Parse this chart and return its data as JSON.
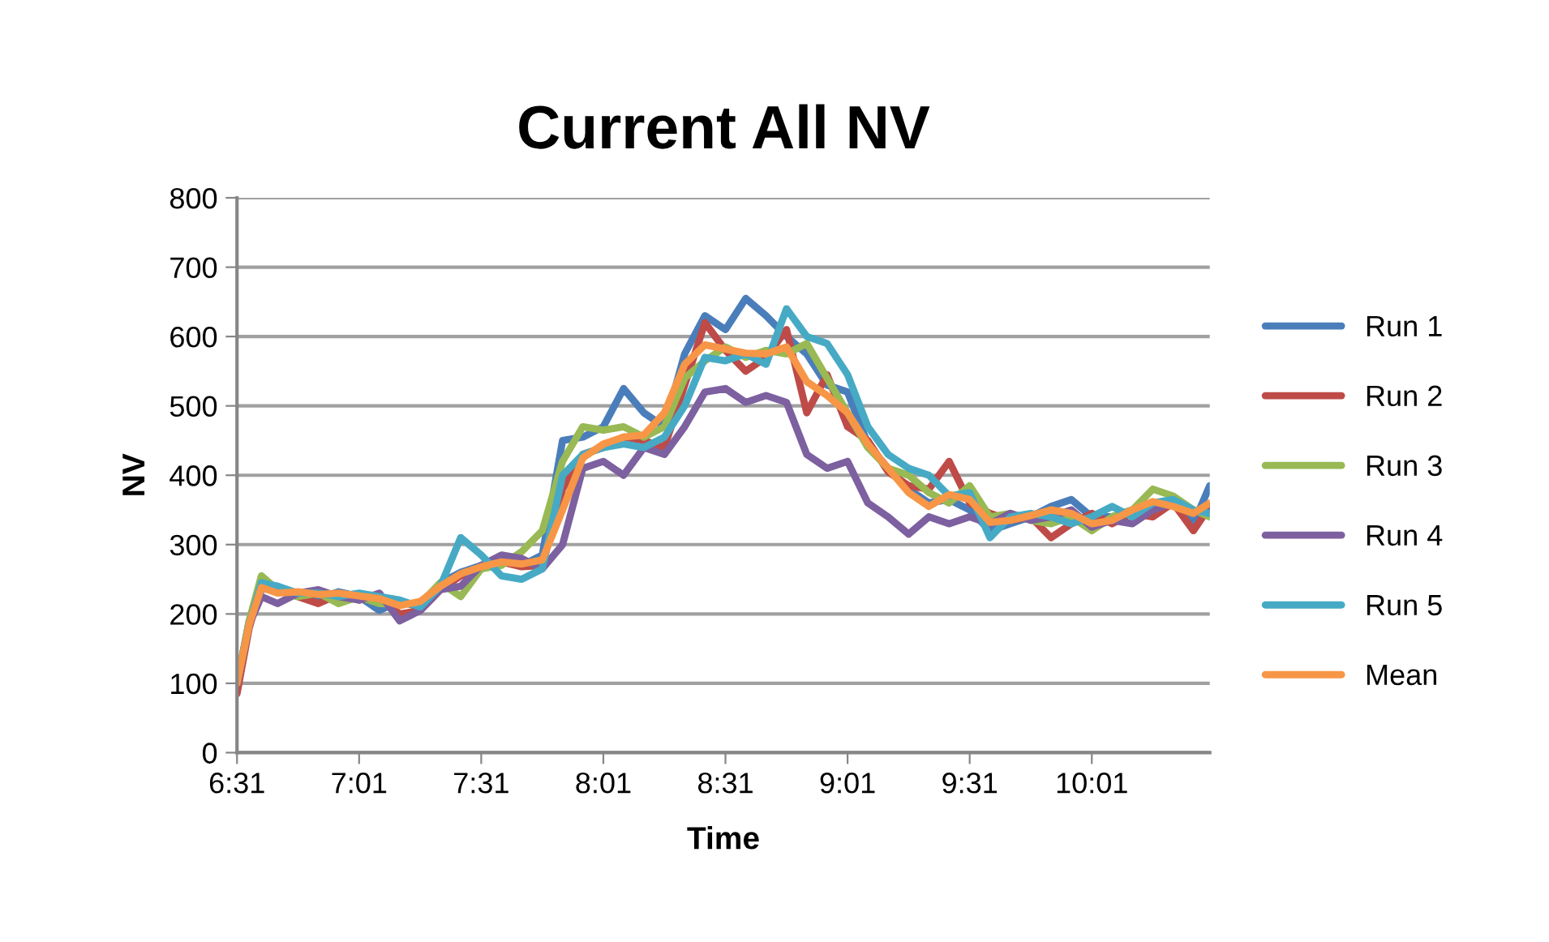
{
  "chart_data": {
    "type": "line",
    "title": "Current All NV",
    "xlabel": "Time",
    "ylabel": "NV",
    "x": [
      6.517,
      6.567,
      6.617,
      6.683,
      6.767,
      6.85,
      6.933,
      7.017,
      7.1,
      7.183,
      7.267,
      7.35,
      7.433,
      7.517,
      7.6,
      7.683,
      7.767,
      7.85,
      7.933,
      8.017,
      8.1,
      8.183,
      8.267,
      8.35,
      8.433,
      8.517,
      8.6,
      8.683,
      8.767,
      8.85,
      8.933,
      9.017,
      9.1,
      9.183,
      9.267,
      9.35,
      9.433,
      9.517,
      9.6,
      9.683,
      9.767,
      9.85,
      9.933,
      10.017,
      10.1,
      10.183,
      10.267,
      10.35,
      10.433,
      10.5
    ],
    "series": [
      {
        "name": "Run 1",
        "color": "#4a7ebb",
        "values": [
          100,
          190,
          235,
          240,
          228,
          222,
          232,
          225,
          205,
          218,
          210,
          245,
          260,
          270,
          280,
          270,
          285,
          450,
          455,
          470,
          525,
          490,
          470,
          575,
          630,
          610,
          655,
          630,
          600,
          575,
          530,
          520,
          445,
          410,
          380,
          360,
          365,
          350,
          320,
          330,
          340,
          355,
          365,
          340,
          340,
          350,
          345,
          365,
          330,
          385
        ]
      },
      {
        "name": "Run 2",
        "color": "#be4b48",
        "values": [
          85,
          180,
          240,
          235,
          225,
          215,
          228,
          220,
          225,
          200,
          205,
          235,
          255,
          265,
          275,
          268,
          270,
          380,
          430,
          440,
          455,
          450,
          440,
          530,
          620,
          580,
          550,
          570,
          610,
          490,
          545,
          470,
          450,
          405,
          385,
          380,
          420,
          360,
          345,
          335,
          340,
          310,
          330,
          345,
          330,
          345,
          340,
          360,
          320,
          355
        ]
      },
      {
        "name": "Run 3",
        "color": "#98b954",
        "values": [
          100,
          190,
          255,
          235,
          225,
          230,
          215,
          225,
          215,
          215,
          215,
          245,
          225,
          265,
          270,
          290,
          320,
          420,
          470,
          465,
          470,
          455,
          470,
          540,
          565,
          585,
          570,
          580,
          575,
          590,
          540,
          490,
          440,
          410,
          400,
          375,
          360,
          385,
          340,
          345,
          335,
          330,
          340,
          320,
          340,
          350,
          380,
          370,
          350,
          340
        ]
      },
      {
        "name": "Run 4",
        "color": "#7d60a0",
        "values": [
          100,
          185,
          225,
          215,
          230,
          235,
          225,
          220,
          230,
          190,
          205,
          235,
          240,
          270,
          285,
          280,
          265,
          300,
          410,
          420,
          400,
          440,
          430,
          470,
          520,
          525,
          505,
          515,
          505,
          430,
          410,
          420,
          360,
          340,
          315,
          340,
          330,
          340,
          330,
          345,
          335,
          340,
          350,
          325,
          335,
          330,
          350,
          360,
          345,
          355
        ]
      },
      {
        "name": "Run 5",
        "color": "#46aac5",
        "values": [
          100,
          185,
          245,
          240,
          230,
          230,
          225,
          230,
          225,
          220,
          210,
          240,
          310,
          285,
          255,
          250,
          265,
          400,
          430,
          440,
          445,
          440,
          455,
          500,
          570,
          565,
          575,
          560,
          640,
          600,
          590,
          545,
          470,
          430,
          410,
          400,
          370,
          375,
          310,
          340,
          345,
          340,
          330,
          340,
          355,
          340,
          360,
          365,
          350,
          345
        ]
      },
      {
        "name": "Mean",
        "color": "#f79646",
        "values": [
          100,
          185,
          238,
          230,
          232,
          228,
          230,
          226,
          222,
          212,
          218,
          240,
          258,
          268,
          275,
          272,
          278,
          350,
          425,
          445,
          455,
          458,
          490,
          560,
          588,
          582,
          576,
          575,
          585,
          535,
          515,
          490,
          445,
          410,
          375,
          355,
          372,
          365,
          332,
          335,
          342,
          350,
          345,
          330,
          335,
          350,
          362,
          355,
          345,
          360
        ]
      }
    ],
    "xlim": [
      6.517,
      10.5
    ],
    "xticks": [
      {
        "value": 6.517,
        "label": "6:31"
      },
      {
        "value": 7.017,
        "label": "7:01"
      },
      {
        "value": 7.517,
        "label": "7:31"
      },
      {
        "value": 8.017,
        "label": "8:01"
      },
      {
        "value": 8.517,
        "label": "8:31"
      },
      {
        "value": 9.017,
        "label": "9:01"
      },
      {
        "value": 9.517,
        "label": "9:31"
      },
      {
        "value": 10.017,
        "label": "10:01"
      }
    ],
    "ylim": [
      0,
      800
    ],
    "yticks": [
      0,
      100,
      200,
      300,
      400,
      500,
      600,
      700,
      800
    ],
    "grid": "y",
    "legend": "right",
    "marker": "none",
    "line_style": "solid"
  }
}
